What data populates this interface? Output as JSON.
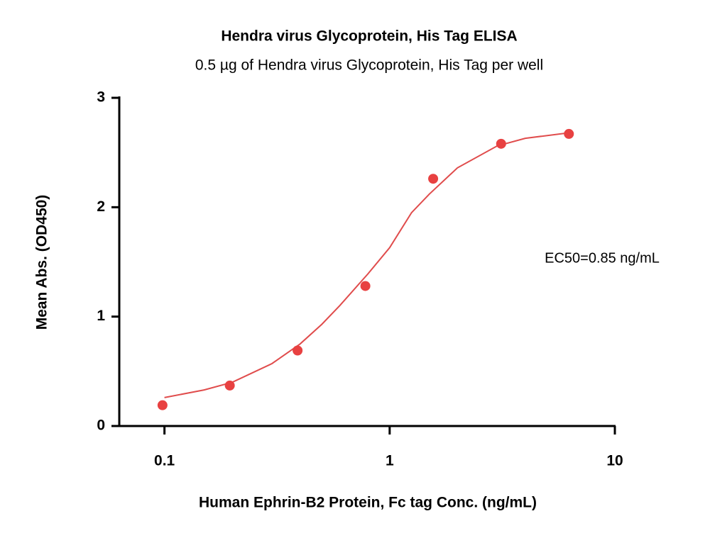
{
  "chart_data": {
    "type": "scatter",
    "title": "Hendra virus Glycoprotein, His Tag ELISA",
    "subtitle": "0.5 µg of Hendra virus Glycoprotein, His Tag per well",
    "x_label": "Human Ephrin-B2 Protein, Fc tag Conc. (ng/mL)",
    "y_label": "Mean Abs. (OD450)",
    "annotation": "EC50=0.85 ng/mL",
    "x_scale": "log",
    "xlim": [
      0.063,
      10
    ],
    "xticks": [
      0.1,
      1,
      10
    ],
    "ylim": [
      0,
      3
    ],
    "yticks": [
      0,
      1,
      2,
      3
    ],
    "color": "#e84141",
    "x": [
      0.098,
      0.195,
      0.39,
      0.78,
      1.56,
      3.125,
      6.25
    ],
    "values": [
      0.19,
      0.37,
      0.69,
      1.28,
      2.26,
      2.58,
      2.67
    ],
    "curve": {
      "color": "#e04c4c",
      "x": [
        0.1,
        0.15,
        0.2,
        0.3,
        0.4,
        0.5,
        0.6,
        0.8,
        1,
        1.25,
        1.5,
        2,
        3,
        4,
        6.25
      ],
      "values": [
        0.26,
        0.33,
        0.4,
        0.57,
        0.75,
        0.93,
        1.1,
        1.39,
        1.63,
        1.95,
        2.12,
        2.36,
        2.56,
        2.63,
        2.68
      ]
    }
  }
}
